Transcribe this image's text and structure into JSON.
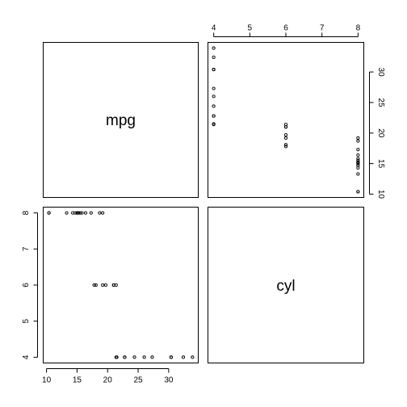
{
  "chart_data": {
    "type": "scatter",
    "title": "",
    "variables": [
      "mpg",
      "cyl"
    ],
    "grid": false,
    "points": {
      "mpg": [
        21.0,
        21.0,
        22.8,
        21.4,
        18.7,
        18.1,
        14.3,
        24.4,
        22.8,
        19.2,
        17.8,
        16.4,
        17.3,
        15.2,
        10.4,
        10.4,
        14.7,
        32.4,
        30.4,
        33.9,
        21.5,
        15.5,
        15.2,
        13.3,
        19.2,
        27.3,
        26.0,
        30.4,
        15.8,
        19.7,
        15.0,
        21.4
      ],
      "cyl": [
        6,
        6,
        4,
        6,
        8,
        6,
        8,
        4,
        4,
        6,
        6,
        8,
        8,
        8,
        8,
        8,
        8,
        4,
        4,
        4,
        4,
        8,
        8,
        8,
        8,
        4,
        4,
        4,
        8,
        6,
        8,
        4
      ]
    },
    "axes": {
      "mpg": {
        "range": [
          10.4,
          33.9
        ],
        "ticks": [
          10,
          15,
          20,
          25,
          30
        ],
        "tick_labels": [
          "10",
          "15",
          "20",
          "25",
          "30"
        ]
      },
      "cyl": {
        "range": [
          4,
          8
        ],
        "ticks": [
          4,
          5,
          6,
          7,
          8
        ],
        "tick_labels": [
          "4",
          "5",
          "6",
          "7",
          "8"
        ]
      }
    },
    "panels": [
      {
        "position": "top-left",
        "kind": "label",
        "label": "mpg"
      },
      {
        "position": "top-right",
        "kind": "scatter",
        "x": "cyl",
        "y": "mpg",
        "x_axis_side": "top",
        "y_axis_side": "right"
      },
      {
        "position": "bottom-left",
        "kind": "scatter",
        "x": "mpg",
        "y": "cyl",
        "x_axis_side": "bottom",
        "y_axis_side": "left"
      },
      {
        "position": "bottom-right",
        "kind": "label",
        "label": "cyl"
      }
    ]
  }
}
